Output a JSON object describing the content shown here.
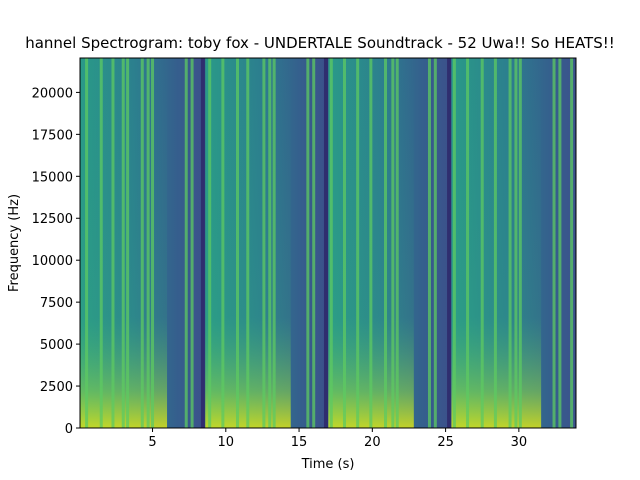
{
  "chart_data": {
    "type": "heatmap",
    "title": "nnel Spectrogram: toby fox - UNDERTALE Soundtrack - 52 Uwa!! So HEATS!!",
    "title_prefix": "ha",
    "xlabel": "Time (s)",
    "ylabel": "Frequency (Hz)",
    "xlim": [
      0.05,
      33.9
    ],
    "ylim": [
      0,
      22050
    ],
    "x_ticks": [
      5,
      10,
      15,
      20,
      25,
      30
    ],
    "x_tick_labels": [
      "5",
      "10",
      "15",
      "20",
      "25",
      "30"
    ],
    "y_ticks": [
      0,
      2500,
      5000,
      7500,
      10000,
      12500,
      15000,
      17500,
      20000
    ],
    "y_tick_labels": [
      "0",
      "2500",
      "5000",
      "7500",
      "10000",
      "12500",
      "15000",
      "17500",
      "20000"
    ],
    "colormap": "viridis",
    "grid": false,
    "phrases": [
      {
        "start": 0.05,
        "end": 8.3
      },
      {
        "start": 8.6,
        "end": 16.7
      },
      {
        "start": 17.0,
        "end": 25.1
      },
      {
        "start": 25.4,
        "end": 33.9
      }
    ],
    "dark_gaps": [
      8.3,
      16.7,
      25.1
    ],
    "bright_columns": [
      0.5,
      1.5,
      2.3,
      3.0,
      3.3,
      4.3,
      4.7,
      5.0,
      7.3,
      7.7,
      8.9,
      9.8,
      10.8,
      11.5,
      12.6,
      13.0,
      13.3,
      15.6,
      16.0,
      17.2,
      18.1,
      19.0,
      19.9,
      20.9,
      21.4,
      21.7,
      23.9,
      24.3,
      25.6,
      26.5,
      27.5,
      28.4,
      29.4,
      29.8,
      30.1,
      32.4,
      32.8,
      33.6
    ]
  }
}
